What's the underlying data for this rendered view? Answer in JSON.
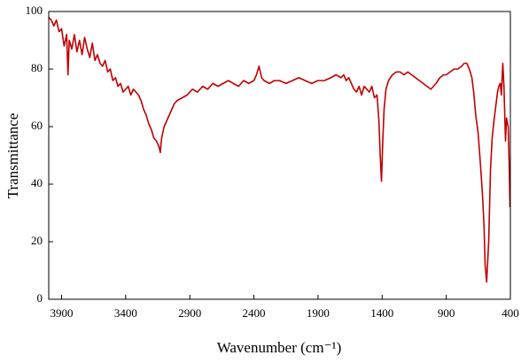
{
  "chart_data": {
    "type": "line",
    "x_label": "Wavenumber (cm⁻¹)",
    "y_label": "Transmittance",
    "xlim": [
      4000,
      400
    ],
    "ylim": [
      0,
      100
    ],
    "xticks": [
      3900,
      3400,
      2900,
      2400,
      1900,
      1400,
      900,
      400
    ],
    "yticks": [
      0,
      20,
      40,
      60,
      80,
      100
    ],
    "grid": false,
    "x": [
      4000,
      3980,
      3960,
      3940,
      3920,
      3900,
      3880,
      3860,
      3850,
      3840,
      3820,
      3800,
      3780,
      3760,
      3740,
      3720,
      3700,
      3680,
      3660,
      3640,
      3620,
      3600,
      3580,
      3560,
      3540,
      3520,
      3500,
      3480,
      3460,
      3440,
      3420,
      3400,
      3380,
      3360,
      3340,
      3320,
      3300,
      3280,
      3260,
      3240,
      3220,
      3200,
      3180,
      3160,
      3140,
      3130,
      3120,
      3100,
      3080,
      3060,
      3040,
      3020,
      3000,
      2960,
      2920,
      2880,
      2840,
      2800,
      2760,
      2720,
      2680,
      2640,
      2600,
      2560,
      2520,
      2480,
      2440,
      2400,
      2380,
      2360,
      2340,
      2320,
      2280,
      2240,
      2200,
      2150,
      2100,
      2050,
      2000,
      1950,
      1900,
      1850,
      1800,
      1760,
      1720,
      1700,
      1680,
      1660,
      1640,
      1620,
      1600,
      1580,
      1560,
      1540,
      1520,
      1500,
      1480,
      1460,
      1440,
      1425,
      1415,
      1405,
      1395,
      1385,
      1370,
      1350,
      1320,
      1290,
      1260,
      1230,
      1200,
      1170,
      1140,
      1110,
      1080,
      1050,
      1020,
      1000,
      980,
      950,
      920,
      900,
      870,
      840,
      810,
      780,
      760,
      740,
      720,
      700,
      686,
      670,
      652,
      635,
      617,
      605,
      597,
      585,
      569,
      555,
      542,
      528,
      514,
      500,
      490,
      479,
      470,
      459,
      450,
      438,
      430,
      417,
      410,
      403
    ],
    "series": [
      {
        "name": "Transmittance",
        "color": "#c00000",
        "values": [
          98,
          97,
          95,
          97,
          93,
          94,
          88,
          92,
          78,
          90,
          87,
          92,
          86,
          90,
          85,
          91,
          87,
          84,
          89,
          83,
          85,
          82,
          81,
          83,
          79,
          80,
          76,
          77,
          74,
          75,
          72,
          73,
          74,
          71,
          73,
          72,
          71,
          69,
          66,
          64,
          61,
          59,
          56,
          55,
          53,
          51,
          56,
          60,
          62,
          64,
          66,
          68,
          69,
          70,
          71,
          73,
          72,
          74,
          73,
          75,
          74,
          75,
          76,
          75,
          74,
          76,
          75,
          76,
          78,
          81,
          77,
          76,
          75,
          76,
          76,
          75,
          76,
          77,
          76,
          75,
          76,
          76,
          77,
          78,
          77,
          78,
          76,
          77,
          75,
          73,
          72,
          74,
          71,
          74,
          73,
          72,
          74,
          70,
          71,
          62,
          50,
          41,
          55,
          66,
          73,
          76,
          78,
          79,
          79,
          78,
          79,
          78,
          77,
          76,
          75,
          74,
          73,
          74,
          75,
          77,
          78,
          78,
          79,
          80,
          80,
          81,
          82,
          82,
          80,
          77,
          72,
          64,
          58,
          48,
          36,
          25,
          12,
          6,
          20,
          45,
          56,
          62,
          67,
          72,
          74,
          75,
          71,
          82,
          74,
          55,
          63,
          60,
          48,
          32
        ]
      }
    ]
  }
}
